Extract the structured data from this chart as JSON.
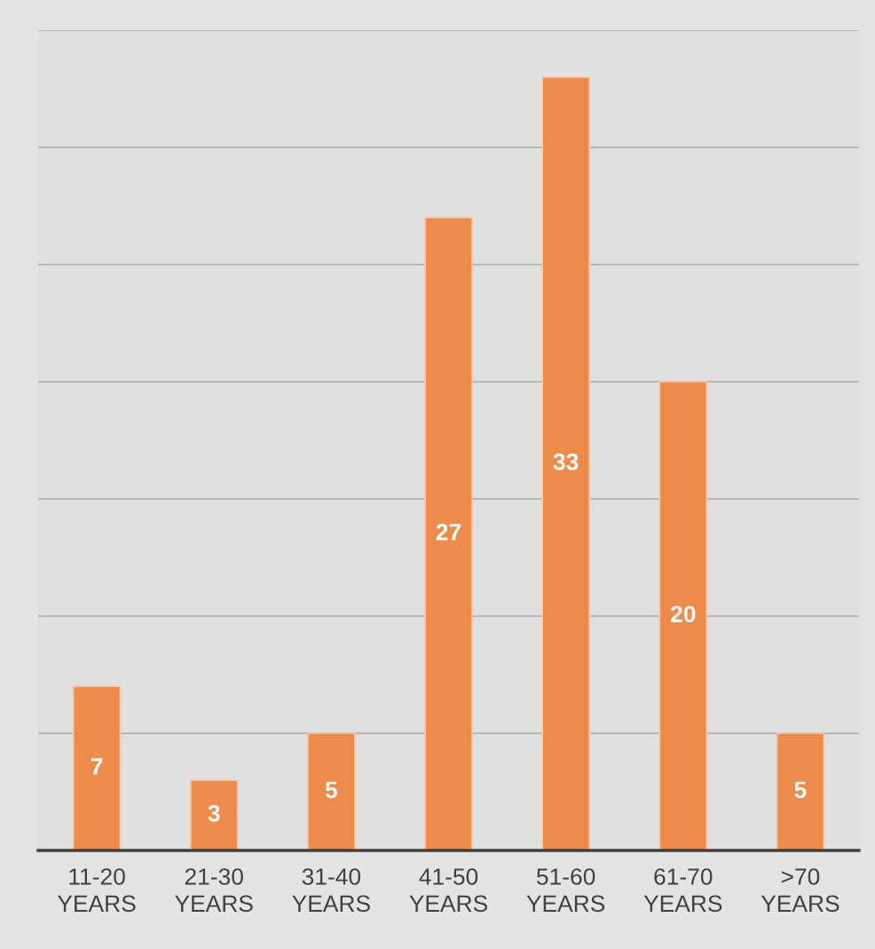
{
  "chart_data": {
    "type": "bar",
    "categories": [
      "11-20 YEARS",
      "21-30 YEARS",
      "31-40 YEARS",
      "41-50 YEARS",
      "51-60 YEARS",
      "61-70 YEARS",
      ">70 YEARS"
    ],
    "values": [
      7,
      3,
      5,
      27,
      33,
      20,
      5
    ],
    "color": "#ed8b4c",
    "ylim": [
      0,
      35
    ],
    "yticks": [
      {
        "value": 0,
        "label": null
      },
      {
        "value": 5,
        "label": null
      },
      {
        "value": 10,
        "label": null
      },
      {
        "value": 15,
        "label": null
      },
      {
        "value": 20,
        "label": null
      },
      {
        "value": 25,
        "label": null
      },
      {
        "value": 30,
        "label": null
      },
      {
        "value": 35,
        "label": null
      }
    ],
    "grid": "y",
    "data_labels": true
  }
}
